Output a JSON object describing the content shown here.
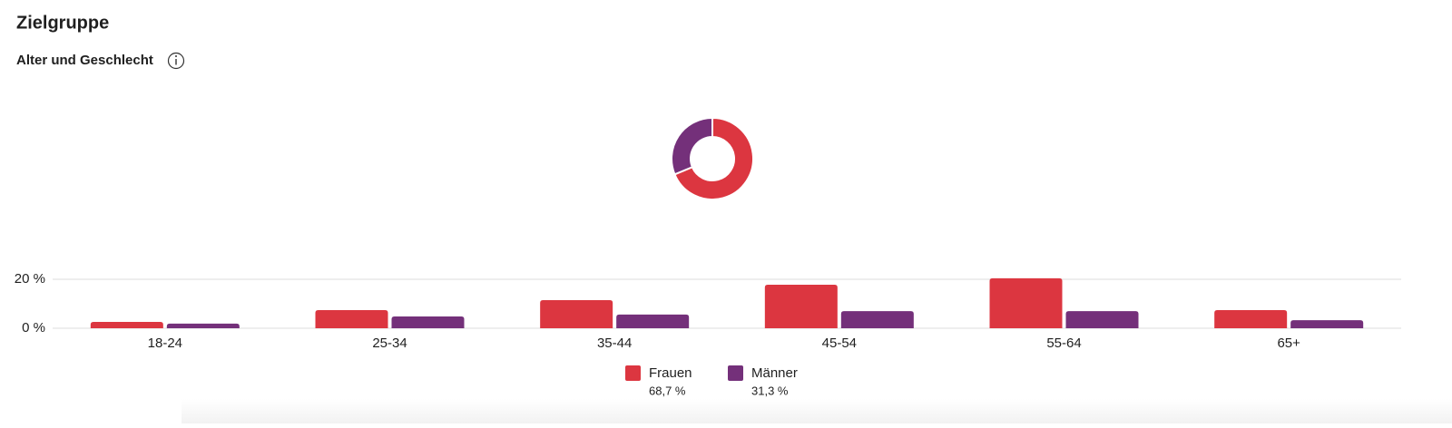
{
  "header": {
    "title": "Zielgruppe",
    "subtitle": "Alter und Geschlecht"
  },
  "chart_data": [
    {
      "type": "pie",
      "values": [
        68.7,
        31.3
      ],
      "value_labels": [
        "68,7 %",
        "31,3 %"
      ],
      "colors": [
        "#dc3640",
        "#74307a"
      ]
    },
    {
      "type": "bar",
      "categories": [
        "18-24",
        "25-34",
        "35-44",
        "45-54",
        "55-64",
        "65+"
      ],
      "series": [
        {
          "name": "Frauen",
          "color": "#dc3640",
          "values": [
            2.6,
            7.4,
            11.5,
            17.8,
            20.4,
            7.4
          ]
        },
        {
          "name": "Männer",
          "color": "#74307a",
          "values": [
            1.9,
            4.8,
            5.6,
            7.0,
            7.0,
            3.3
          ]
        }
      ],
      "ylim": [
        0,
        20
      ],
      "yticks": [
        {
          "value": 0,
          "label": "0 %"
        },
        {
          "value": 20,
          "label": "20 %"
        }
      ],
      "grid": true
    }
  ]
}
